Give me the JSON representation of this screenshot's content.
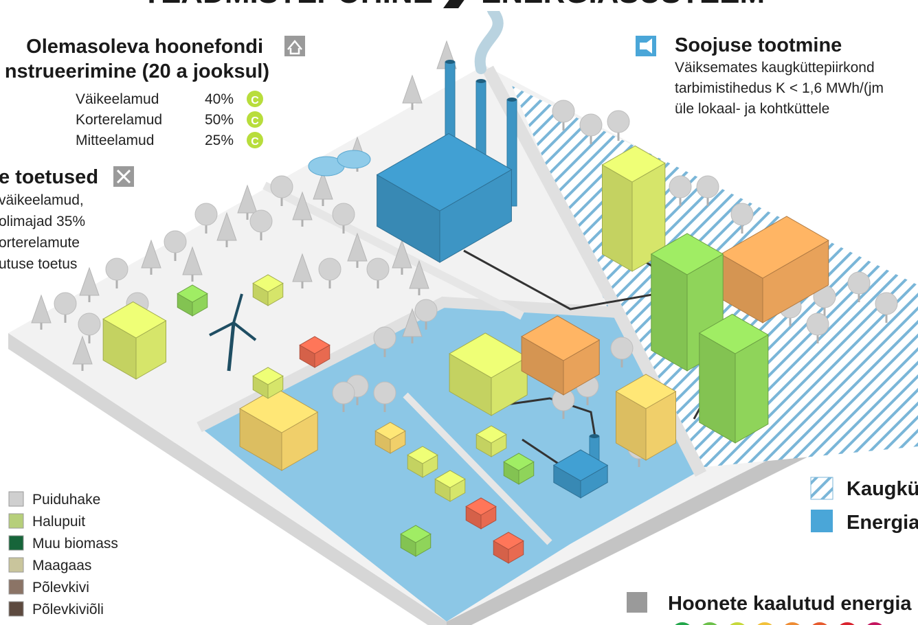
{
  "title": {
    "left": "TEADMISTEPÕHINE",
    "right": "ENERGIASÜSTEEM"
  },
  "renovation": {
    "title_line1": "Olemasoleva hoonefondi",
    "title_line2": "nstrueerimine (20 a jooksul)",
    "rows": [
      {
        "name": "Väikeelamud",
        "value": "40%",
        "class": "C"
      },
      {
        "name": "Korterelamud",
        "value": "50%",
        "class": "C"
      },
      {
        "name": "Mitteelamud",
        "value": "25%",
        "class": "C"
      }
    ]
  },
  "subsidies": {
    "title": "e toetused",
    "lines": [
      "väikeelamud,",
      "olimajad 35%",
      "orterelamute",
      "utuse toetus"
    ]
  },
  "heat": {
    "title": "Soojuse tootmine",
    "lines": [
      "Väiksemates kaugküttepiirkond",
      "tarbimistihedus K < 1,6 MWh/(jm",
      "üle lokaal- ja kohtküttele"
    ]
  },
  "fuel_legend": [
    {
      "name": "Puiduhake",
      "color": "#cfcfcf"
    },
    {
      "name": "Halupuit",
      "color": "#b6cf7a"
    },
    {
      "name": "Muu biomass",
      "color": "#17653a"
    },
    {
      "name": "Maagaas",
      "color": "#c9c59c"
    },
    {
      "name": "Põlevkivi",
      "color": "#8b7466"
    },
    {
      "name": "Põlevkiviõli",
      "color": "#5d4a3f"
    }
  ],
  "area_legend": [
    {
      "name": "Kaugkü"
    },
    {
      "name": "Energia"
    }
  ],
  "energy_class": {
    "title": "Hoonete kaalutud energia"
  }
}
